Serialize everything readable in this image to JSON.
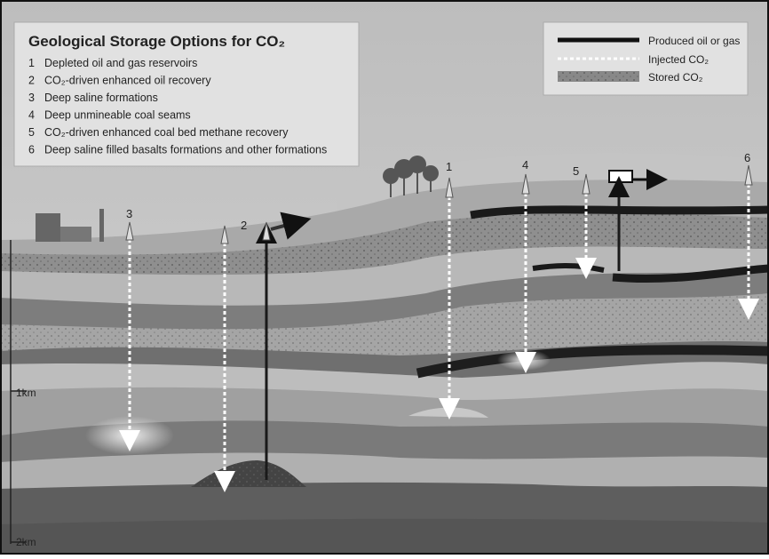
{
  "title": "Geological Storage Options for CO₂",
  "options": [
    {
      "number": "1",
      "label": "Depleted oil and gas reservoirs"
    },
    {
      "number": "2",
      "label": "CO₂-driven enhanced oil recovery"
    },
    {
      "number": "3",
      "label": "Deep saline formations"
    },
    {
      "number": "4",
      "label": "Deep unmineable coal seams"
    },
    {
      "number": "5",
      "label": "CO₂-driven enhanced coal bed methane recovery"
    },
    {
      "number": "6",
      "label": "Deep saline filled basalts formations and other formations"
    }
  ],
  "legend": [
    "Produced oil or gas",
    "Injected CO₂",
    "Stored CO₂"
  ],
  "well_labels": [
    "3",
    "2",
    "1",
    "4",
    "5",
    "6"
  ],
  "depth_labels": [
    "1km",
    "2km"
  ]
}
